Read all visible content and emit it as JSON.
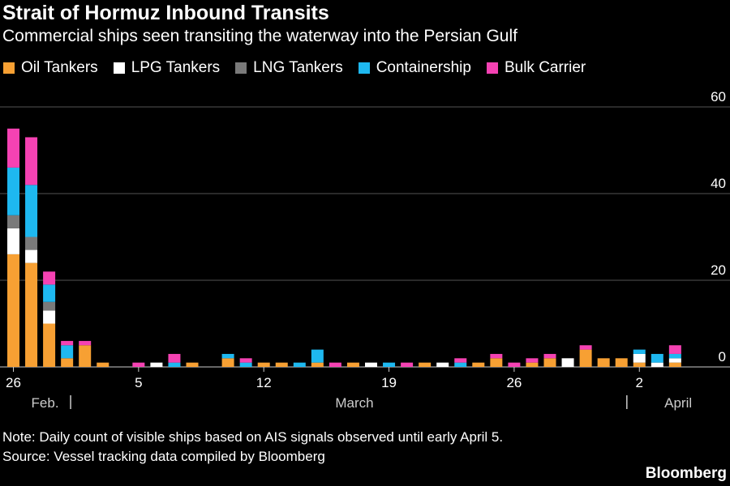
{
  "header": {
    "title": "Strait of Hormuz Inbound Transits",
    "subtitle": "Commercial ships seen transiting the waterway into the Persian Gulf"
  },
  "footer": {
    "note": "Note: Daily count of visible ships based on AIS signals observed until early April 5.",
    "source": "Source: Vessel tracking data compiled by Bloomberg",
    "brand": "Bloomberg"
  },
  "chart_data": {
    "type": "bar",
    "stacked": true,
    "title": "Strait of Hormuz Inbound Transits",
    "subtitle": "Commercial ships seen transiting the waterway into the Persian Gulf",
    "xlabel": "",
    "ylabel": "",
    "ylim": [
      0,
      60
    ],
    "yticks": [
      0,
      20,
      40,
      60
    ],
    "y_axis_side": "right",
    "grid": true,
    "legend_position": "top-left",
    "x_tick_labels": [
      {
        "label": "26",
        "index": 0
      },
      {
        "label": "5",
        "index": 7
      },
      {
        "label": "12",
        "index": 14
      },
      {
        "label": "19",
        "index": 21
      },
      {
        "label": "26",
        "index": 28
      },
      {
        "label": "2",
        "index": 35
      }
    ],
    "month_labels": [
      {
        "label": "Feb.",
        "index": 1
      },
      {
        "label": "March",
        "index": 18
      },
      {
        "label": "April",
        "index": 36.4
      }
    ],
    "month_separators": [
      3.2,
      34.3
    ],
    "categories": [
      "Feb 26",
      "Feb 27",
      "Feb 28",
      "Mar 1",
      "Mar 2",
      "Mar 3",
      "Mar 4",
      "Mar 5",
      "Mar 6",
      "Mar 7",
      "Mar 8",
      "Mar 9",
      "Mar 10",
      "Mar 11",
      "Mar 12",
      "Mar 13",
      "Mar 14",
      "Mar 15",
      "Mar 16",
      "Mar 17",
      "Mar 18",
      "Mar 19",
      "Mar 20",
      "Mar 21",
      "Mar 22",
      "Mar 23",
      "Mar 24",
      "Mar 25",
      "Mar 26",
      "Mar 27",
      "Mar 28",
      "Mar 29",
      "Mar 30",
      "Mar 31",
      "Apr 1",
      "Apr 2",
      "Apr 3",
      "Apr 4"
    ],
    "series": [
      {
        "name": "Oil Tankers",
        "color": "#f7a033",
        "values": [
          26,
          24,
          10,
          2,
          5,
          1,
          0,
          0,
          0,
          0,
          1,
          0,
          2,
          0,
          1,
          1,
          0,
          1,
          0,
          1,
          0,
          0,
          0,
          1,
          0,
          0,
          1,
          2,
          0,
          1,
          2,
          0,
          4,
          2,
          2,
          1,
          0,
          1
        ]
      },
      {
        "name": "LPG Tankers",
        "color": "#ffffff",
        "values": [
          6,
          3,
          3,
          0,
          0,
          0,
          0,
          0,
          1,
          0,
          0,
          0,
          0,
          0,
          0,
          0,
          0,
          0,
          0,
          0,
          1,
          0,
          0,
          0,
          1,
          0,
          0,
          0,
          0,
          0,
          0,
          2,
          0,
          0,
          0,
          2,
          1,
          1
        ]
      },
      {
        "name": "LNG Tankers",
        "color": "#7a7a7a",
        "values": [
          3,
          3,
          2,
          0,
          0,
          0,
          0,
          0,
          0,
          0,
          0,
          0,
          0,
          0,
          0,
          0,
          0,
          0,
          0,
          0,
          0,
          0,
          0,
          0,
          0,
          0,
          0,
          0,
          0,
          0,
          0,
          0,
          0,
          0,
          0,
          0,
          0,
          0
        ]
      },
      {
        "name": "Containership",
        "color": "#1eb8f0",
        "values": [
          11,
          12,
          4,
          3,
          0,
          0,
          0,
          0,
          0,
          1,
          0,
          0,
          1,
          1,
          0,
          0,
          1,
          3,
          0,
          0,
          0,
          1,
          0,
          0,
          0,
          1,
          0,
          0,
          0,
          0,
          0,
          0,
          0,
          0,
          0,
          1,
          2,
          1
        ]
      },
      {
        "name": "Bulk Carrier",
        "color": "#f542b3",
        "values": [
          9,
          11,
          3,
          1,
          1,
          0,
          0,
          1,
          0,
          2,
          0,
          0,
          0,
          1,
          0,
          0,
          0,
          0,
          1,
          0,
          0,
          0,
          1,
          0,
          0,
          1,
          0,
          1,
          1,
          1,
          1,
          0,
          1,
          0,
          0,
          0,
          0,
          2
        ]
      }
    ]
  }
}
